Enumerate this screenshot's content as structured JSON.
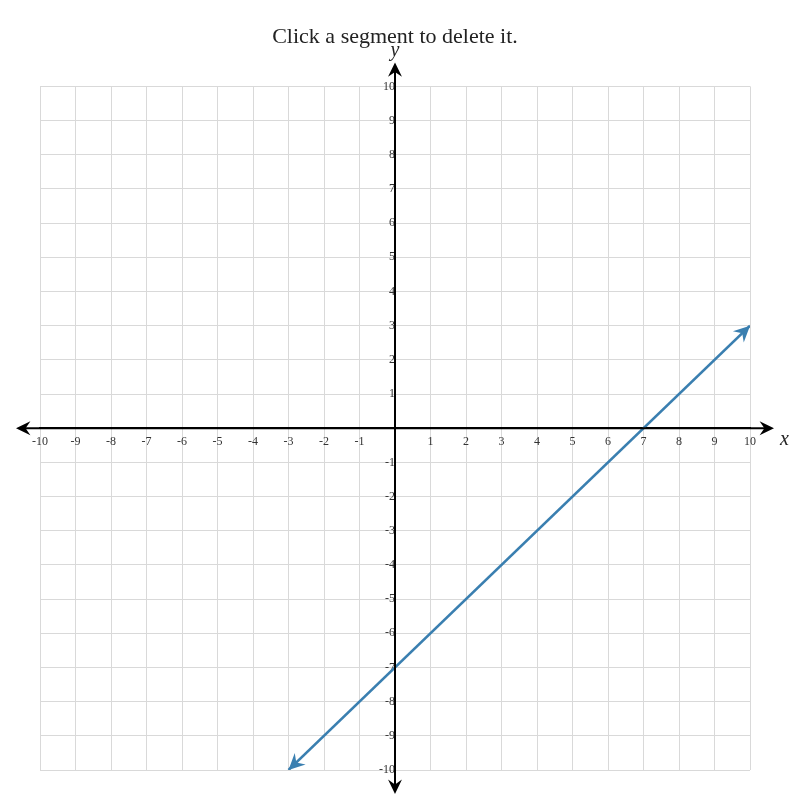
{
  "chart_data": {
    "type": "line",
    "title": "Click a segment to delete it.",
    "xlabel": "x",
    "ylabel": "y",
    "x": [
      -3,
      10
    ],
    "values": [
      -10,
      3
    ],
    "color": "#3a7fb0",
    "xlim": [
      -10,
      10
    ],
    "ylim": [
      -10,
      10
    ],
    "xticks": [
      -10,
      -9,
      -8,
      -7,
      -6,
      -5,
      -4,
      -3,
      -2,
      -1,
      1,
      2,
      3,
      4,
      5,
      6,
      7,
      8,
      9,
      10
    ],
    "yticks": [
      -10,
      -9,
      -8,
      -7,
      -6,
      -5,
      -4,
      -3,
      -2,
      -1,
      1,
      2,
      3,
      4,
      5,
      6,
      7,
      8,
      9,
      10
    ],
    "grid": true
  }
}
